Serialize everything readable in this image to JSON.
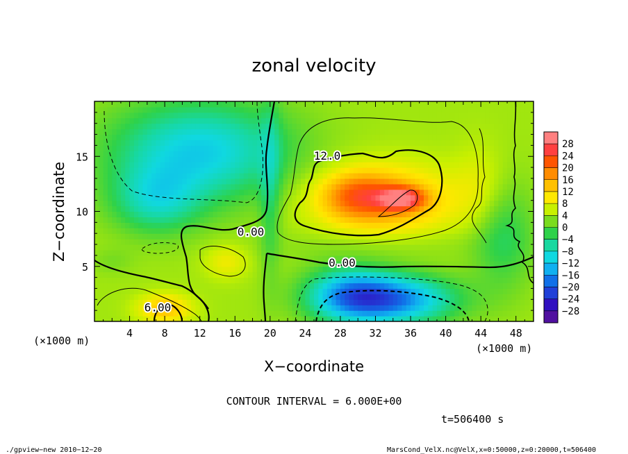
{
  "chart_data": {
    "type": "heatmap",
    "title": "zonal velocity",
    "xlabel": "X−coordinate",
    "ylabel": "Z−coordinate",
    "x_unit": "(×1000 m)",
    "z_unit": "(×1000 m)",
    "xlim": [
      0,
      50
    ],
    "ylim": [
      0,
      20
    ],
    "x_ticks": [
      4,
      8,
      12,
      16,
      20,
      24,
      28,
      32,
      36,
      40,
      44,
      48
    ],
    "y_ticks": [
      5,
      10,
      15
    ],
    "colorbar": {
      "labels": [
        "28",
        "24",
        "20",
        "16",
        "12",
        "8",
        "4",
        "0",
        "−4",
        "−8",
        "−12",
        "−16",
        "−20",
        "−24",
        "−28"
      ],
      "colors": [
        "#ff8080",
        "#ff4040",
        "#ff5500",
        "#ff8c00",
        "#ffc000",
        "#ffe800",
        "#c8f000",
        "#7adc1e",
        "#2ed24a",
        "#18d8a0",
        "#10d8e0",
        "#10b0f0",
        "#1070e8",
        "#2040d8",
        "#3010c0",
        "#5010a0"
      ]
    },
    "field": {
      "background": 4,
      "features": [
        {
          "x": 12,
          "z": 15.5,
          "rx": 10,
          "rz": 4.5,
          "value": -11
        },
        {
          "x": 7,
          "z": 11,
          "rx": 5,
          "rz": 3,
          "value": -6
        },
        {
          "x": 33,
          "z": 11,
          "rx": 8,
          "rz": 3.2,
          "value": 16
        },
        {
          "x": 35,
          "z": 11.2,
          "rx": 2.5,
          "rz": 1,
          "value": 22
        },
        {
          "x": 30,
          "z": 11.5,
          "rx": 4,
          "rz": 2,
          "value": 14
        },
        {
          "x": 34,
          "z": 2,
          "rx": 7,
          "rz": 2.2,
          "value": -16
        },
        {
          "x": 29,
          "z": 2.5,
          "rx": 5,
          "rz": 2.5,
          "value": -10
        },
        {
          "x": 8,
          "z": 1.2,
          "rx": 3,
          "rz": 1.3,
          "value": 14
        },
        {
          "x": 15,
          "z": 5.5,
          "rx": 2.5,
          "rz": 1.6,
          "value": 9
        },
        {
          "x": 32,
          "z": 7,
          "rx": 12,
          "rz": 1.5,
          "value": 2
        },
        {
          "x": 20,
          "z": 12,
          "rx": 1.2,
          "rz": 8,
          "value": -2
        },
        {
          "x": 46.5,
          "z": 8,
          "rx": 3.5,
          "rz": 5,
          "value": -3
        },
        {
          "x": 2,
          "z": 5.5,
          "rx": 2.5,
          "rz": 1.2,
          "value": 2
        },
        {
          "x": 44,
          "z": 12,
          "rx": 3,
          "rz": 4,
          "value": 8
        }
      ]
    },
    "contour_labels": [
      {
        "text": "12.0",
        "x": 26.5,
        "z": 14.7
      },
      {
        "text": "0.00",
        "x": 17.8,
        "z": 7.8
      },
      {
        "text": "0.00",
        "x": 28.2,
        "z": 5
      },
      {
        "text": "6.00",
        "x": 7.2,
        "z": 0.9
      }
    ],
    "contour_interval_text": "CONTOUR INTERVAL = 6.000E+00",
    "time_text": "t=506400 s",
    "footer_left": "./gpview−new  2010−12−20",
    "footer_right": "MarsCond_VelX.nc@VelX,x=0:50000,z=0:20000,t=506400"
  }
}
